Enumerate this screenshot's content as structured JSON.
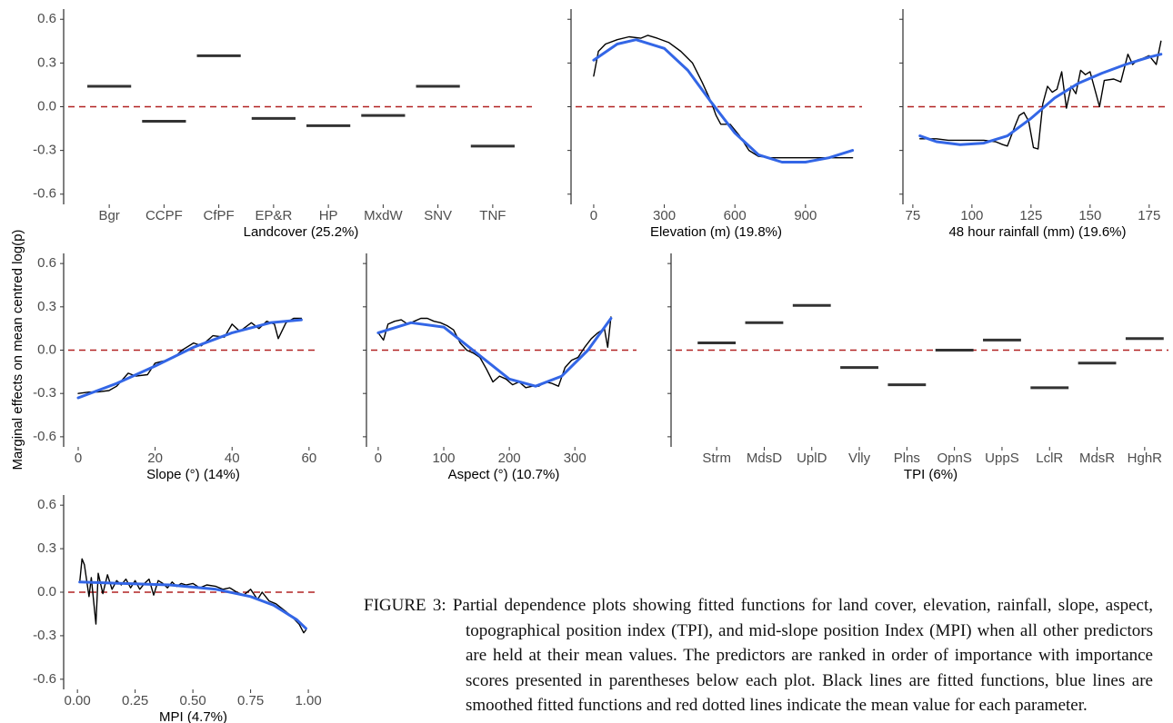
{
  "y_label": "Marginal effects on mean centred log(p)",
  "caption": "FIGURE 3: Partial dependence plots showing fitted functions for land cover, elevation, rainfall, slope, aspect, topographical position index (TPI), and mid-slope position Index (MPI) when all other predictors are held at their mean values. The predictors are ranked in order of importance with importance scores presented in parentheses below each plot. Black lines are fitted functions, blue lines are smoothed fitted functions and red dotted lines indicate the mean value for each parameter.",
  "chart_data": [
    {
      "type": "level",
      "x_label": "Landcover  (25.2%)",
      "color": "#333333",
      "categories": [
        "Bgr",
        "CCPF",
        "CfPF",
        "EP&R",
        "HP",
        "MxdW",
        "SNV",
        "TNF"
      ],
      "values": [
        0.14,
        -0.1,
        0.35,
        -0.08,
        -0.13,
        -0.06,
        0.14,
        -0.27
      ],
      "ylim": [
        -0.67,
        0.67
      ],
      "yticks": [
        -0.6,
        -0.3,
        {
          "value": 0,
          "label": "0.0"
        },
        0.3,
        0.6
      ],
      "ytick_labels": true,
      "hline": 0,
      "hline_color": "#b22222"
    },
    {
      "type": "line",
      "x_label": "Elevation (m)  (19.8%)",
      "xlim": [
        -50,
        1090
      ],
      "xticks": [
        0,
        300,
        600,
        900
      ],
      "ylim": [
        -0.67,
        0.67
      ],
      "yticks": [
        -0.6,
        -0.3,
        0,
        0.3,
        0.6
      ],
      "ytick_labels": false,
      "hline": 0,
      "hline_color": "#b22222",
      "series": [
        {
          "color": "#000000",
          "x": [
            0,
            20,
            50,
            100,
            150,
            200,
            230,
            270,
            320,
            370,
            420,
            460,
            500,
            520,
            540,
            580,
            620,
            660,
            700,
            750,
            850,
            950,
            1100
          ],
          "values": [
            0.21,
            0.38,
            0.43,
            0.46,
            0.48,
            0.47,
            0.49,
            0.47,
            0.44,
            0.38,
            0.3,
            0.17,
            0.03,
            -0.06,
            -0.12,
            -0.12,
            -0.2,
            -0.3,
            -0.34,
            -0.35,
            -0.35,
            -0.35,
            -0.35
          ]
        },
        {
          "color": "#3366e6",
          "x": [
            0,
            100,
            180,
            300,
            400,
            500,
            600,
            700,
            800,
            900,
            1000,
            1100
          ],
          "values": [
            0.32,
            0.43,
            0.46,
            0.4,
            0.25,
            0.03,
            -0.18,
            -0.33,
            -0.38,
            -0.38,
            -0.35,
            -0.3
          ]
        }
      ]
    },
    {
      "type": "line",
      "x_label": "48 hour rainfall (mm)  (19.6%)",
      "xlim": [
        73.5,
        182
      ],
      "xticks": [
        75,
        100,
        125,
        150,
        175
      ],
      "ylim": [
        -0.67,
        0.67
      ],
      "yticks": [
        -0.6,
        -0.3,
        0,
        0.3,
        0.6
      ],
      "ytick_labels": false,
      "hline": 0,
      "hline_color": "#b22222",
      "series": [
        {
          "color": "#000000",
          "x": [
            78,
            85,
            90,
            95,
            100,
            105,
            110,
            113,
            115,
            118,
            120,
            122,
            124,
            126,
            128,
            130,
            132,
            134,
            136,
            138,
            140,
            142,
            144,
            146,
            148,
            150,
            152,
            154,
            156,
            160,
            163,
            166,
            168,
            170,
            172,
            175,
            178,
            180
          ],
          "values": [
            -0.22,
            -0.22,
            -0.23,
            -0.23,
            -0.23,
            -0.23,
            -0.24,
            -0.26,
            -0.27,
            -0.14,
            -0.06,
            -0.04,
            -0.1,
            -0.28,
            -0.29,
            0.02,
            0.14,
            0.1,
            0.12,
            0.24,
            -0.01,
            0.14,
            0.09,
            0.25,
            0.22,
            0.24,
            0.12,
            0.0,
            0.18,
            0.19,
            0.17,
            0.36,
            0.29,
            0.32,
            0.33,
            0.35,
            0.29,
            0.45
          ]
        },
        {
          "color": "#3366e6",
          "x": [
            78,
            85,
            95,
            105,
            115,
            125,
            135,
            145,
            155,
            165,
            175,
            180
          ],
          "values": [
            -0.2,
            -0.24,
            -0.26,
            -0.25,
            -0.2,
            -0.08,
            0.06,
            0.16,
            0.23,
            0.29,
            0.34,
            0.36
          ]
        }
      ]
    },
    {
      "type": "line",
      "x_label": "Slope (°)  (14%)",
      "xlim": [
        -2.6,
        62.4
      ],
      "xticks": [
        0,
        20,
        40,
        60
      ],
      "ylim": [
        -0.67,
        0.67
      ],
      "yticks": [
        -0.6,
        -0.3,
        {
          "value": 0,
          "label": "0.0"
        },
        0.3,
        0.6
      ],
      "ytick_labels": true,
      "hline": 0,
      "hline_color": "#b22222",
      "series": [
        {
          "color": "#000000",
          "x": [
            0,
            3,
            5,
            8,
            10,
            13,
            15,
            18,
            20,
            23,
            25,
            27,
            30,
            32,
            35,
            38,
            40,
            42,
            45,
            47,
            49,
            51,
            52,
            54,
            56,
            58
          ],
          "values": [
            -0.3,
            -0.29,
            -0.29,
            -0.28,
            -0.25,
            -0.16,
            -0.18,
            -0.17,
            -0.09,
            -0.07,
            -0.05,
            0.0,
            0.05,
            0.03,
            0.1,
            0.09,
            0.18,
            0.13,
            0.19,
            0.15,
            0.2,
            0.18,
            0.08,
            0.19,
            0.22,
            0.22
          ]
        },
        {
          "color": "#3366e6",
          "x": [
            0,
            10,
            20,
            30,
            40,
            50,
            58
          ],
          "values": [
            -0.33,
            -0.23,
            -0.11,
            0.02,
            0.12,
            0.19,
            0.21
          ]
        }
      ]
    },
    {
      "type": "line",
      "x_label": "Aspect (°)  (10.7%)",
      "xlim": [
        -11,
        394
      ],
      "xticks": [
        0,
        100,
        200,
        300
      ],
      "ylim": [
        -0.67,
        0.67
      ],
      "yticks": [
        -0.6,
        -0.3,
        0,
        0.3,
        0.6
      ],
      "ytick_labels": false,
      "hline": 0,
      "hline_color": "#b22222",
      "series": [
        {
          "color": "#000000",
          "x": [
            0,
            8,
            15,
            25,
            35,
            45,
            55,
            65,
            75,
            85,
            95,
            105,
            115,
            125,
            135,
            145,
            155,
            165,
            175,
            185,
            195,
            205,
            215,
            225,
            235,
            245,
            255,
            265,
            275,
            285,
            295,
            305,
            315,
            325,
            335,
            345,
            350,
            355
          ],
          "values": [
            0.12,
            0.07,
            0.18,
            0.2,
            0.21,
            0.18,
            0.2,
            0.22,
            0.22,
            0.2,
            0.19,
            0.17,
            0.14,
            0.05,
            0.0,
            -0.02,
            -0.05,
            -0.13,
            -0.22,
            -0.18,
            -0.2,
            -0.24,
            -0.22,
            -0.26,
            -0.25,
            -0.25,
            -0.22,
            -0.23,
            -0.25,
            -0.12,
            -0.07,
            -0.05,
            0.02,
            0.08,
            0.12,
            0.15,
            0.02,
            0.23
          ]
        },
        {
          "color": "#3366e6",
          "x": [
            0,
            50,
            100,
            150,
            200,
            240,
            280,
            320,
            355
          ],
          "values": [
            0.12,
            0.19,
            0.16,
            -0.02,
            -0.2,
            -0.25,
            -0.18,
            0.0,
            0.22
          ]
        }
      ]
    },
    {
      "type": "level",
      "x_label": "TPI  (6%)",
      "color": "#333333",
      "categories": [
        "Strm",
        "MdsD",
        "UplD",
        "Vlly",
        "Plns",
        "OpnS",
        "UppS",
        "LclR",
        "MdsR",
        "HghR"
      ],
      "values": [
        0.05,
        0.19,
        0.31,
        -0.12,
        -0.24,
        0.0,
        0.07,
        -0.26,
        -0.09,
        0.08
      ],
      "ylim": [
        -0.67,
        0.67
      ],
      "yticks": [
        -0.6,
        -0.3,
        0,
        0.3,
        0.6
      ],
      "ytick_labels": false,
      "hline": 0,
      "hline_color": "#b22222"
    },
    {
      "type": "line",
      "x_label": "MPI  (4.7%)",
      "xlim": [
        -0.04,
        1.043
      ],
      "xticks": [
        {
          "value": 0,
          "label": "0.00"
        },
        {
          "value": 0.25,
          "label": "0.25"
        },
        {
          "value": 0.5,
          "label": "0.50"
        },
        {
          "value": 0.75,
          "label": "0.75"
        },
        {
          "value": 1,
          "label": "1.00"
        }
      ],
      "ylim": [
        -0.67,
        0.67
      ],
      "yticks": [
        -0.6,
        -0.3,
        {
          "value": 0,
          "label": "0.0"
        },
        0.3,
        0.6
      ],
      "ytick_labels": true,
      "hline": 0,
      "hline_color": "#b22222",
      "series": [
        {
          "color": "#000000",
          "x": [
            0.01,
            0.02,
            0.03,
            0.05,
            0.06,
            0.08,
            0.09,
            0.11,
            0.13,
            0.15,
            0.17,
            0.19,
            0.21,
            0.23,
            0.25,
            0.27,
            0.29,
            0.31,
            0.33,
            0.35,
            0.37,
            0.39,
            0.41,
            0.43,
            0.45,
            0.47,
            0.5,
            0.53,
            0.56,
            0.6,
            0.63,
            0.66,
            0.69,
            0.72,
            0.75,
            0.78,
            0.8,
            0.83,
            0.86,
            0.9,
            0.93,
            0.96,
            0.98,
            0.99
          ],
          "values": [
            0.07,
            0.23,
            0.19,
            -0.03,
            0.1,
            -0.22,
            0.13,
            -0.01,
            0.12,
            0.02,
            0.08,
            0.05,
            0.09,
            0.03,
            0.08,
            0.02,
            0.06,
            0.09,
            -0.02,
            0.08,
            0.06,
            0.03,
            0.07,
            0.04,
            0.06,
            0.05,
            0.06,
            0.03,
            0.05,
            0.04,
            0.02,
            0.03,
            0.0,
            -0.02,
            0.02,
            -0.05,
            0.0,
            -0.06,
            -0.08,
            -0.13,
            -0.17,
            -0.22,
            -0.28,
            -0.26
          ]
        },
        {
          "color": "#3366e6",
          "x": [
            0.01,
            0.2,
            0.4,
            0.6,
            0.75,
            0.85,
            0.95,
            0.99
          ],
          "values": [
            0.07,
            0.06,
            0.05,
            0.02,
            -0.03,
            -0.09,
            -0.19,
            -0.25
          ]
        }
      ]
    }
  ]
}
